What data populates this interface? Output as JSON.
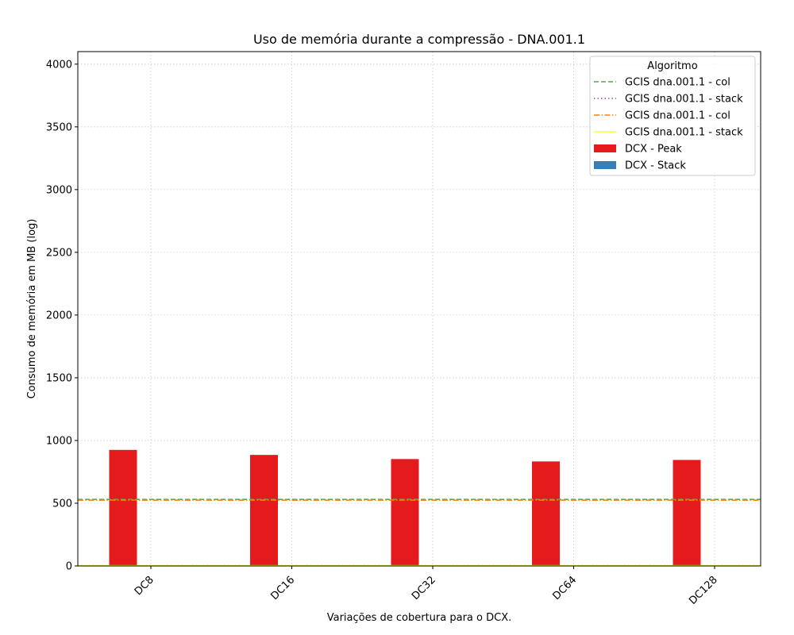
{
  "chart_data": {
    "type": "bar",
    "title": "Uso de memória durante a compressão -  DNA.001.1",
    "xlabel": "Variações de cobertura para o DCX.",
    "ylabel": "Consumo de memória em MB (log)",
    "categories": [
      "DC8",
      "DC16",
      "DC32",
      "DC64",
      "DC128"
    ],
    "ylim": [
      0,
      4100
    ],
    "yticks": [
      0,
      500,
      1000,
      1500,
      2000,
      2500,
      3000,
      3500,
      4000
    ],
    "grid": true,
    "legend": {
      "title": "Algoritmo",
      "placement": "top-right"
    },
    "series": [
      {
        "name": "DCX - Peak",
        "color": "#e41a1c",
        "values": [
          925,
          885,
          852,
          833,
          845
        ]
      },
      {
        "name": "DCX - Stack",
        "color": "#377eb8",
        "values": [
          0,
          0,
          0,
          0,
          0
        ]
      }
    ],
    "reference_lines": [
      {
        "name": "GCIS dna.001.1 - col",
        "value": 530,
        "color": "#4daf4a",
        "style": "dashed"
      },
      {
        "name": "GCIS dna.001.1 - stack",
        "value": 2,
        "color": "#984ea3",
        "style": "dotted"
      },
      {
        "name": "GCIS dna.001.1 - col",
        "value": 525,
        "color": "#ff7f00",
        "style": "dashdot"
      },
      {
        "name": "GCIS dna.001.1 - stack",
        "value": 2,
        "color": "#ffff33",
        "style": "solid"
      }
    ]
  }
}
